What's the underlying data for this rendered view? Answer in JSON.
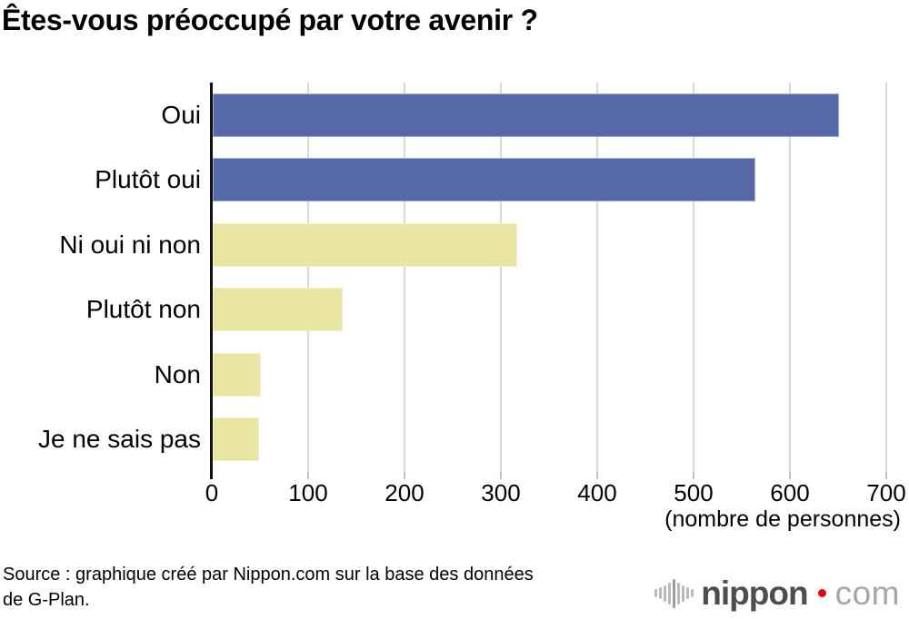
{
  "title": "Êtes-vous préoccupé par votre avenir ?",
  "chart_data": {
    "type": "bar",
    "orientation": "horizontal",
    "title": "Êtes-vous préoccupé par votre avenir ?",
    "categories": [
      "Oui",
      "Plutôt oui",
      "Ni oui ni non",
      "Plutôt non",
      "Non",
      "Je ne sais pas"
    ],
    "values": [
      650,
      563,
      316,
      135,
      50,
      48
    ],
    "bar_colors": [
      "#5669a6",
      "#5669a6",
      "#e9e6a3",
      "#e9e6a3",
      "#e9e6a3",
      "#e9e6a3"
    ],
    "xlabel": "(nombre de personnes)",
    "ylabel": "",
    "xlim": [
      0,
      700
    ],
    "xticks": [
      0,
      100,
      200,
      300,
      400,
      500,
      600,
      700
    ],
    "grid": true,
    "legend": false
  },
  "source": {
    "line1": "Source : graphique créé par Nippon.com sur la base des données",
    "line2": "de G-Plan."
  },
  "logo": {
    "name": "nippon",
    "suffix": "com",
    "dot_color": "#e60012",
    "wave_icon": "soundwave-icon"
  },
  "colors": {
    "bar_blue": "#5669a6",
    "bar_yellow": "#e9e6a3",
    "gridline": "#d9d9d9",
    "axis": "#111111",
    "background": "#ffffff"
  }
}
